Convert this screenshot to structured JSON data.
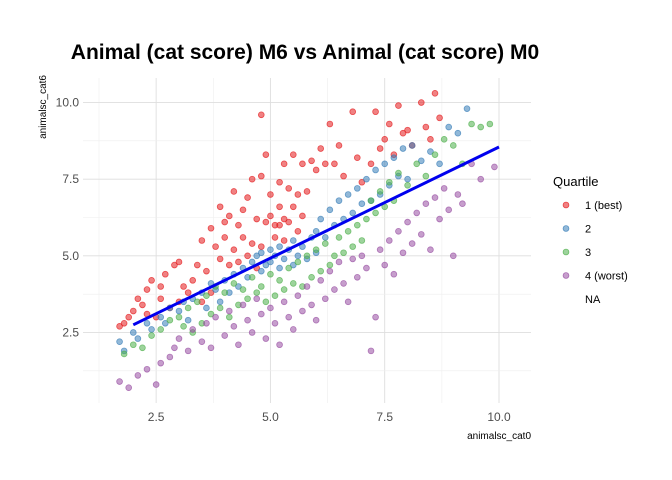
{
  "chart_data": {
    "type": "scatter",
    "title": "Animal (cat score) M6 vs Animal (cat score) M0",
    "xlabel": "animalsc_cat0",
    "ylabel": "animalsc_cat6",
    "xlim": [
      0.9,
      10.7
    ],
    "ylim": [
      0.2,
      10.8
    ],
    "x_ticks": [
      2.5,
      5.0,
      7.5,
      10.0
    ],
    "x_tick_labels": [
      "2.5",
      "5.0",
      "7.5",
      "10.0"
    ],
    "y_ticks": [
      2.5,
      5.0,
      7.5,
      10.0
    ],
    "y_tick_labels": [
      "2.5",
      "5.0",
      "7.5",
      "10.0"
    ],
    "grid": true,
    "legend": {
      "title": "Quartile",
      "position": "right",
      "entries": [
        {
          "label": "1 (best)",
          "color": "#e41a1c"
        },
        {
          "label": "2",
          "color": "#377eb8"
        },
        {
          "label": "3",
          "color": "#4daf4a"
        },
        {
          "label": "4 (worst)",
          "color": "#984ea3"
        },
        {
          "label": "NA",
          "color": ""
        }
      ]
    },
    "trend_line": {
      "x": [
        2.0,
        10.0
      ],
      "y": [
        2.75,
        8.55
      ],
      "color": "#0000ee"
    },
    "series": [
      {
        "name": "1 (best)",
        "color": "#e41a1c",
        "points": [
          [
            1.7,
            2.7
          ],
          [
            1.8,
            2.8
          ],
          [
            1.9,
            3.0
          ],
          [
            2.0,
            3.2
          ],
          [
            2.1,
            3.6
          ],
          [
            2.2,
            3.4
          ],
          [
            2.3,
            3.1
          ],
          [
            2.3,
            3.9
          ],
          [
            2.4,
            4.2
          ],
          [
            2.5,
            3.0
          ],
          [
            2.6,
            3.6
          ],
          [
            2.6,
            4.0
          ],
          [
            2.7,
            4.4
          ],
          [
            2.8,
            3.3
          ],
          [
            2.9,
            4.7
          ],
          [
            3.0,
            4.8
          ],
          [
            3.0,
            3.5
          ],
          [
            3.1,
            4.0
          ],
          [
            3.2,
            3.8
          ],
          [
            3.3,
            4.2
          ],
          [
            3.4,
            4.7
          ],
          [
            3.5,
            3.5
          ],
          [
            3.5,
            5.5
          ],
          [
            3.6,
            4.5
          ],
          [
            3.7,
            3.8
          ],
          [
            3.7,
            5.9
          ],
          [
            3.8,
            5.3
          ],
          [
            3.9,
            6.6
          ],
          [
            3.9,
            4.9
          ],
          [
            4.0,
            6.1
          ],
          [
            4.0,
            5.6
          ],
          [
            4.1,
            6.3
          ],
          [
            4.1,
            4.7
          ],
          [
            4.2,
            7.1
          ],
          [
            4.2,
            5.2
          ],
          [
            4.3,
            6.0
          ],
          [
            4.3,
            4.8
          ],
          [
            4.4,
            6.5
          ],
          [
            4.4,
            5.6
          ],
          [
            4.5,
            5.0
          ],
          [
            4.5,
            6.9
          ],
          [
            4.6,
            7.5
          ],
          [
            4.6,
            5.4
          ],
          [
            4.7,
            6.2
          ],
          [
            4.7,
            4.6
          ],
          [
            4.8,
            9.6
          ],
          [
            4.8,
            7.6
          ],
          [
            4.8,
            5.3
          ],
          [
            4.9,
            8.3
          ],
          [
            4.9,
            6.1
          ],
          [
            5.0,
            7.0
          ],
          [
            5.0,
            6.3
          ],
          [
            5.1,
            6.0
          ],
          [
            5.1,
            5.6
          ],
          [
            5.2,
            7.4
          ],
          [
            5.2,
            6.6
          ],
          [
            5.2,
            6.0
          ],
          [
            5.3,
            8.0
          ],
          [
            5.3,
            6.2
          ],
          [
            5.3,
            5.5
          ],
          [
            5.4,
            7.2
          ],
          [
            5.4,
            6.1
          ],
          [
            5.5,
            8.3
          ],
          [
            5.5,
            6.6
          ],
          [
            5.6,
            7.0
          ],
          [
            5.6,
            5.8
          ],
          [
            5.7,
            8.0
          ],
          [
            5.7,
            6.3
          ],
          [
            5.8,
            7.1
          ],
          [
            5.9,
            8.1
          ],
          [
            6.0,
            7.8
          ],
          [
            6.1,
            8.5
          ],
          [
            6.2,
            8.0
          ],
          [
            6.3,
            9.3
          ],
          [
            6.4,
            8.0
          ],
          [
            6.5,
            8.6
          ],
          [
            6.6,
            7.6
          ],
          [
            6.8,
            9.7
          ],
          [
            6.9,
            8.2
          ],
          [
            7.0,
            7.4
          ],
          [
            7.2,
            8.0
          ],
          [
            7.3,
            9.7
          ],
          [
            7.4,
            8.5
          ],
          [
            7.5,
            8.8
          ],
          [
            7.6,
            9.3
          ],
          [
            7.7,
            8.3
          ],
          [
            7.8,
            9.9
          ],
          [
            7.9,
            9.0
          ],
          [
            8.0,
            9.1
          ],
          [
            8.1,
            8.6
          ],
          [
            8.3,
            10.0
          ],
          [
            8.4,
            9.2
          ],
          [
            8.5,
            8.8
          ],
          [
            8.6,
            10.3
          ],
          [
            8.7,
            9.5
          ]
        ]
      },
      {
        "name": "2",
        "color": "#377eb8",
        "points": [
          [
            1.7,
            2.2
          ],
          [
            1.8,
            1.9
          ],
          [
            2.0,
            2.5
          ],
          [
            2.1,
            2.3
          ],
          [
            2.3,
            2.8
          ],
          [
            2.4,
            2.6
          ],
          [
            2.6,
            3.0
          ],
          [
            2.7,
            2.8
          ],
          [
            2.8,
            3.3
          ],
          [
            3.0,
            3.2
          ],
          [
            3.1,
            3.5
          ],
          [
            3.2,
            2.9
          ],
          [
            3.3,
            3.6
          ],
          [
            3.5,
            3.8
          ],
          [
            3.6,
            3.3
          ],
          [
            3.7,
            4.1
          ],
          [
            3.8,
            3.9
          ],
          [
            3.9,
            3.5
          ],
          [
            4.0,
            4.2
          ],
          [
            4.1,
            3.8
          ],
          [
            4.2,
            4.4
          ],
          [
            4.3,
            4.0
          ],
          [
            4.4,
            4.6
          ],
          [
            4.5,
            4.3
          ],
          [
            4.6,
            4.8
          ],
          [
            4.7,
            5.0
          ],
          [
            4.8,
            4.5
          ],
          [
            4.8,
            5.1
          ],
          [
            4.9,
            4.7
          ],
          [
            5.0,
            5.2
          ],
          [
            5.0,
            4.8
          ],
          [
            5.1,
            5.0
          ],
          [
            5.2,
            4.6
          ],
          [
            5.2,
            5.3
          ],
          [
            5.3,
            4.9
          ],
          [
            5.4,
            5.2
          ],
          [
            5.5,
            4.7
          ],
          [
            5.5,
            5.5
          ],
          [
            5.6,
            5.0
          ],
          [
            5.7,
            5.3
          ],
          [
            5.8,
            4.9
          ],
          [
            5.9,
            5.6
          ],
          [
            6.0,
            5.1
          ],
          [
            6.0,
            5.8
          ],
          [
            6.1,
            6.2
          ],
          [
            6.2,
            5.6
          ],
          [
            6.3,
            6.5
          ],
          [
            6.4,
            6.0
          ],
          [
            6.5,
            6.8
          ],
          [
            6.6,
            6.2
          ],
          [
            6.7,
            7.0
          ],
          [
            6.8,
            6.4
          ],
          [
            6.9,
            7.2
          ],
          [
            7.0,
            6.7
          ],
          [
            7.1,
            7.5
          ],
          [
            7.2,
            6.8
          ],
          [
            7.3,
            7.8
          ],
          [
            7.4,
            7.0
          ],
          [
            7.5,
            8.0
          ],
          [
            7.6,
            7.3
          ],
          [
            7.7,
            8.2
          ],
          [
            7.8,
            7.6
          ],
          [
            7.9,
            8.5
          ],
          [
            8.0,
            7.5
          ],
          [
            8.1,
            8.6
          ],
          [
            8.3,
            8.1
          ],
          [
            8.5,
            8.4
          ],
          [
            8.7,
            8.0
          ],
          [
            8.9,
            9.2
          ],
          [
            9.1,
            9.0
          ],
          [
            9.3,
            9.8
          ]
        ]
      },
      {
        "name": "3",
        "color": "#4daf4a",
        "points": [
          [
            1.8,
            1.8
          ],
          [
            2.0,
            2.1
          ],
          [
            2.2,
            2.0
          ],
          [
            2.4,
            2.4
          ],
          [
            2.6,
            2.6
          ],
          [
            2.8,
            2.9
          ],
          [
            3.0,
            3.0
          ],
          [
            3.1,
            2.7
          ],
          [
            3.2,
            3.3
          ],
          [
            3.3,
            2.5
          ],
          [
            3.4,
            3.5
          ],
          [
            3.5,
            2.8
          ],
          [
            3.6,
            3.7
          ],
          [
            3.7,
            3.1
          ],
          [
            3.8,
            4.0
          ],
          [
            3.9,
            3.3
          ],
          [
            4.0,
            3.8
          ],
          [
            4.1,
            3.0
          ],
          [
            4.2,
            4.1
          ],
          [
            4.3,
            3.4
          ],
          [
            4.4,
            3.9
          ],
          [
            4.5,
            3.6
          ],
          [
            4.6,
            4.3
          ],
          [
            4.7,
            3.8
          ],
          [
            4.8,
            4.0
          ],
          [
            4.9,
            3.5
          ],
          [
            5.0,
            4.4
          ],
          [
            5.1,
            3.7
          ],
          [
            5.2,
            4.2
          ],
          [
            5.3,
            3.9
          ],
          [
            5.4,
            4.6
          ],
          [
            5.5,
            4.1
          ],
          [
            5.6,
            4.8
          ],
          [
            5.7,
            4.0
          ],
          [
            5.8,
            5.0
          ],
          [
            5.9,
            4.3
          ],
          [
            6.0,
            5.2
          ],
          [
            6.1,
            4.5
          ],
          [
            6.2,
            5.4
          ],
          [
            6.3,
            4.7
          ],
          [
            6.4,
            5.0
          ],
          [
            6.5,
            5.6
          ],
          [
            6.6,
            5.1
          ],
          [
            6.7,
            5.8
          ],
          [
            6.8,
            5.3
          ],
          [
            6.9,
            6.0
          ],
          [
            7.0,
            5.5
          ],
          [
            7.1,
            6.2
          ],
          [
            7.2,
            6.8
          ],
          [
            7.3,
            6.4
          ],
          [
            7.4,
            7.1
          ],
          [
            7.5,
            6.6
          ],
          [
            7.6,
            7.4
          ],
          [
            7.7,
            6.8
          ],
          [
            7.8,
            7.7
          ],
          [
            8.0,
            7.3
          ],
          [
            8.2,
            8.0
          ],
          [
            8.4,
            7.6
          ],
          [
            8.6,
            8.3
          ],
          [
            8.8,
            8.8
          ],
          [
            9.0,
            8.6
          ],
          [
            9.2,
            8.0
          ],
          [
            9.4,
            9.3
          ],
          [
            9.6,
            9.2
          ],
          [
            9.8,
            9.3
          ]
        ]
      },
      {
        "name": "4 (worst)",
        "color": "#984ea3",
        "points": [
          [
            1.7,
            0.9
          ],
          [
            1.9,
            0.7
          ],
          [
            2.1,
            1.1
          ],
          [
            2.3,
            1.3
          ],
          [
            2.5,
            0.8
          ],
          [
            2.6,
            1.5
          ],
          [
            2.8,
            1.7
          ],
          [
            2.9,
            2.0
          ],
          [
            3.0,
            2.3
          ],
          [
            3.2,
            1.9
          ],
          [
            3.3,
            2.6
          ],
          [
            3.5,
            2.2
          ],
          [
            3.6,
            2.8
          ],
          [
            3.7,
            2.0
          ],
          [
            3.8,
            3.0
          ],
          [
            4.0,
            2.4
          ],
          [
            4.1,
            3.2
          ],
          [
            4.2,
            2.7
          ],
          [
            4.3,
            2.1
          ],
          [
            4.4,
            3.4
          ],
          [
            4.5,
            2.9
          ],
          [
            4.6,
            2.5
          ],
          [
            4.7,
            3.6
          ],
          [
            4.8,
            3.1
          ],
          [
            4.9,
            2.3
          ],
          [
            5.0,
            3.3
          ],
          [
            5.1,
            2.8
          ],
          [
            5.2,
            2.1
          ],
          [
            5.3,
            3.5
          ],
          [
            5.4,
            3.0
          ],
          [
            5.5,
            2.6
          ],
          [
            5.6,
            3.7
          ],
          [
            5.7,
            3.2
          ],
          [
            5.8,
            4.0
          ],
          [
            5.9,
            3.4
          ],
          [
            6.0,
            2.9
          ],
          [
            6.1,
            4.2
          ],
          [
            6.2,
            3.6
          ],
          [
            6.3,
            4.5
          ],
          [
            6.4,
            3.9
          ],
          [
            6.5,
            4.8
          ],
          [
            6.6,
            4.1
          ],
          [
            6.7,
            3.5
          ],
          [
            6.8,
            4.9
          ],
          [
            6.9,
            4.3
          ],
          [
            7.0,
            5.0
          ],
          [
            7.1,
            4.6
          ],
          [
            7.2,
            1.9
          ],
          [
            7.3,
            3.0
          ],
          [
            7.4,
            5.2
          ],
          [
            7.5,
            4.7
          ],
          [
            7.6,
            5.5
          ],
          [
            7.7,
            4.4
          ],
          [
            7.8,
            5.8
          ],
          [
            7.9,
            5.1
          ],
          [
            8.0,
            6.1
          ],
          [
            8.1,
            5.4
          ],
          [
            8.2,
            6.4
          ],
          [
            8.3,
            5.7
          ],
          [
            8.4,
            6.7
          ],
          [
            8.5,
            5.2
          ],
          [
            8.6,
            6.9
          ],
          [
            8.7,
            6.2
          ],
          [
            8.8,
            7.2
          ],
          [
            8.9,
            6.5
          ],
          [
            9.0,
            5.0
          ],
          [
            9.1,
            7.0
          ],
          [
            9.2,
            6.7
          ],
          [
            9.4,
            8.0
          ],
          [
            9.6,
            7.5
          ],
          [
            9.9,
            7.9
          ]
        ]
      }
    ]
  }
}
